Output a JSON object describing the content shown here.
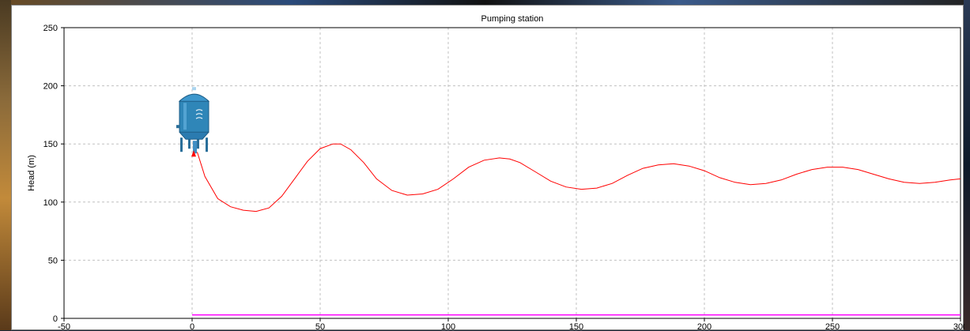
{
  "chart_data": {
    "type": "line",
    "title": "Pumping station",
    "xlabel": "",
    "ylabel": "Head (m)",
    "xlim": [
      -50,
      300
    ],
    "ylim": [
      0,
      250
    ],
    "x_ticks": [
      -50,
      0,
      50,
      100,
      150,
      200,
      250,
      300
    ],
    "y_ticks": [
      0,
      50,
      100,
      150,
      200,
      250
    ],
    "grid": true,
    "legend": "none",
    "colors": {
      "head_line": "#ff0000",
      "base_line": "#ff00ff",
      "tank": "#2f86b8",
      "grid": "#c0c0c0"
    },
    "annotations": [
      {
        "type": "tank-icon",
        "name": "pressure-vessel-icon",
        "x": 0,
        "y": 150
      }
    ],
    "series": [
      {
        "color": "#ff0000",
        "x": [
          2,
          5,
          10,
          15,
          20,
          25,
          30,
          35,
          40,
          45,
          50,
          55,
          58,
          62,
          67,
          72,
          78,
          84,
          90,
          96,
          102,
          108,
          114,
          120,
          124,
          128,
          134,
          140,
          146,
          152,
          158,
          164,
          170,
          176,
          182,
          188,
          194,
          200,
          206,
          212,
          218,
          224,
          230,
          236,
          242,
          248,
          254,
          260,
          266,
          272,
          278,
          284,
          290,
          296,
          300
        ],
        "y": [
          143,
          122,
          103,
          96,
          93,
          92,
          95,
          105,
          120,
          135,
          146,
          150,
          150,
          145,
          134,
          120,
          110,
          106,
          107,
          111,
          120,
          130,
          136,
          138,
          137,
          134,
          126,
          118,
          113,
          111,
          112,
          116,
          123,
          129,
          132,
          133,
          131,
          127,
          121,
          117,
          115,
          116,
          119,
          124,
          128,
          130,
          130,
          128,
          124,
          120,
          117,
          116,
          117,
          119,
          120
        ]
      },
      {
        "color": "#ff00ff",
        "x": [
          0,
          300
        ],
        "y": [
          3,
          3
        ]
      }
    ]
  }
}
